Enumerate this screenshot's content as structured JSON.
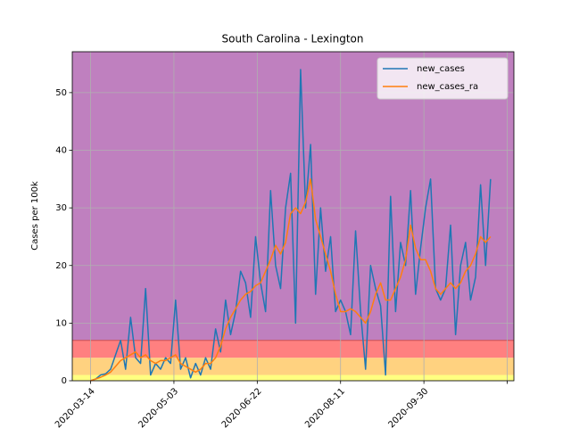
{
  "chart_data": {
    "type": "line",
    "title": "South Carolina - Lexington",
    "ylabel": "Cases per 100k",
    "x": [
      "2020-03-14",
      "2020-03-17",
      "2020-03-20",
      "2020-03-23",
      "2020-03-26",
      "2020-03-29",
      "2020-04-01",
      "2020-04-04",
      "2020-04-07",
      "2020-04-10",
      "2020-04-13",
      "2020-04-16",
      "2020-04-19",
      "2020-04-22",
      "2020-04-25",
      "2020-04-28",
      "2020-05-01",
      "2020-05-04",
      "2020-05-07",
      "2020-05-10",
      "2020-05-13",
      "2020-05-16",
      "2020-05-19",
      "2020-05-22",
      "2020-05-25",
      "2020-05-28",
      "2020-05-31",
      "2020-06-03",
      "2020-06-06",
      "2020-06-09",
      "2020-06-12",
      "2020-06-15",
      "2020-06-18",
      "2020-06-21",
      "2020-06-24",
      "2020-06-27",
      "2020-06-30",
      "2020-07-03",
      "2020-07-06",
      "2020-07-09",
      "2020-07-12",
      "2020-07-15",
      "2020-07-18",
      "2020-07-21",
      "2020-07-24",
      "2020-07-27",
      "2020-07-30",
      "2020-08-02",
      "2020-08-05",
      "2020-08-08",
      "2020-08-11",
      "2020-08-14",
      "2020-08-17",
      "2020-08-20",
      "2020-08-23",
      "2020-08-26",
      "2020-08-29",
      "2020-09-01",
      "2020-09-04",
      "2020-09-07",
      "2020-09-10",
      "2020-09-13",
      "2020-09-16",
      "2020-09-19",
      "2020-09-22",
      "2020-09-25",
      "2020-09-28",
      "2020-10-01",
      "2020-10-04",
      "2020-10-07",
      "2020-10-10",
      "2020-10-13",
      "2020-10-16",
      "2020-10-19",
      "2020-10-22",
      "2020-10-25",
      "2020-10-28",
      "2020-10-31",
      "2020-11-03",
      "2020-11-06",
      "2020-11-09"
    ],
    "series": [
      {
        "name": "new_cases",
        "color": "#1f77b4",
        "values": [
          0,
          0.3,
          1,
          1.2,
          2,
          4.5,
          7,
          2,
          11,
          4,
          3,
          16,
          1,
          3,
          2,
          4,
          3,
          14,
          2,
          4,
          0.5,
          3,
          1,
          4,
          2,
          9,
          5,
          14,
          8,
          12,
          19,
          17,
          11,
          25,
          17,
          12,
          33,
          20,
          16,
          30,
          36,
          10,
          54,
          30,
          41,
          15,
          30,
          19,
          25,
          12,
          14,
          12,
          8,
          26,
          12,
          2,
          20,
          16,
          13,
          1,
          32,
          12,
          24,
          20,
          33,
          15,
          23,
          30,
          35,
          16,
          14,
          16,
          27,
          8,
          20,
          24,
          14,
          18,
          34,
          20,
          35
        ]
      },
      {
        "name": "new_cases_ra",
        "color": "#ff7f0e",
        "values": [
          0,
          0.3,
          0.6,
          1,
          1.5,
          2.5,
          3.5,
          4,
          4.5,
          5,
          4,
          4.5,
          3.5,
          3,
          3.5,
          3.5,
          4,
          4.5,
          3,
          2.5,
          2,
          1.5,
          2,
          3,
          3,
          4,
          6,
          9,
          11,
          12.5,
          14,
          15,
          15.5,
          16.5,
          17,
          19,
          21,
          23.5,
          22,
          24,
          29,
          30,
          29,
          31,
          35,
          28,
          25,
          22,
          19,
          15,
          12,
          12,
          12.5,
          12,
          11,
          10,
          12,
          15,
          17,
          14,
          14,
          16,
          18,
          21,
          27,
          23,
          21,
          21,
          19,
          16,
          15,
          16,
          17,
          16,
          17,
          19,
          20,
          22,
          25,
          24,
          25
        ]
      }
    ],
    "bands": [
      {
        "from": 0,
        "to": 1,
        "color": "#ffff80"
      },
      {
        "from": 1,
        "to": 4,
        "color": "#ffd280"
      },
      {
        "from": 4,
        "to": 7,
        "color": "#ff8080"
      },
      {
        "from": 7,
        "to": 57.1,
        "color": "#bf80bf"
      }
    ],
    "band_edge_color": "#d05050",
    "xlim": [
      "2020-03-03",
      "2020-11-23"
    ],
    "xticks": [
      "2020-03-14",
      "2020-05-03",
      "2020-06-22",
      "2020-08-11",
      "2020-09-30",
      {
        "value": "2020-11-19",
        "label": null
      }
    ],
    "ylim": [
      0,
      57.1
    ],
    "yticks": [
      0,
      10,
      20,
      30,
      40,
      50
    ],
    "grid": true,
    "legend": "upper right"
  }
}
